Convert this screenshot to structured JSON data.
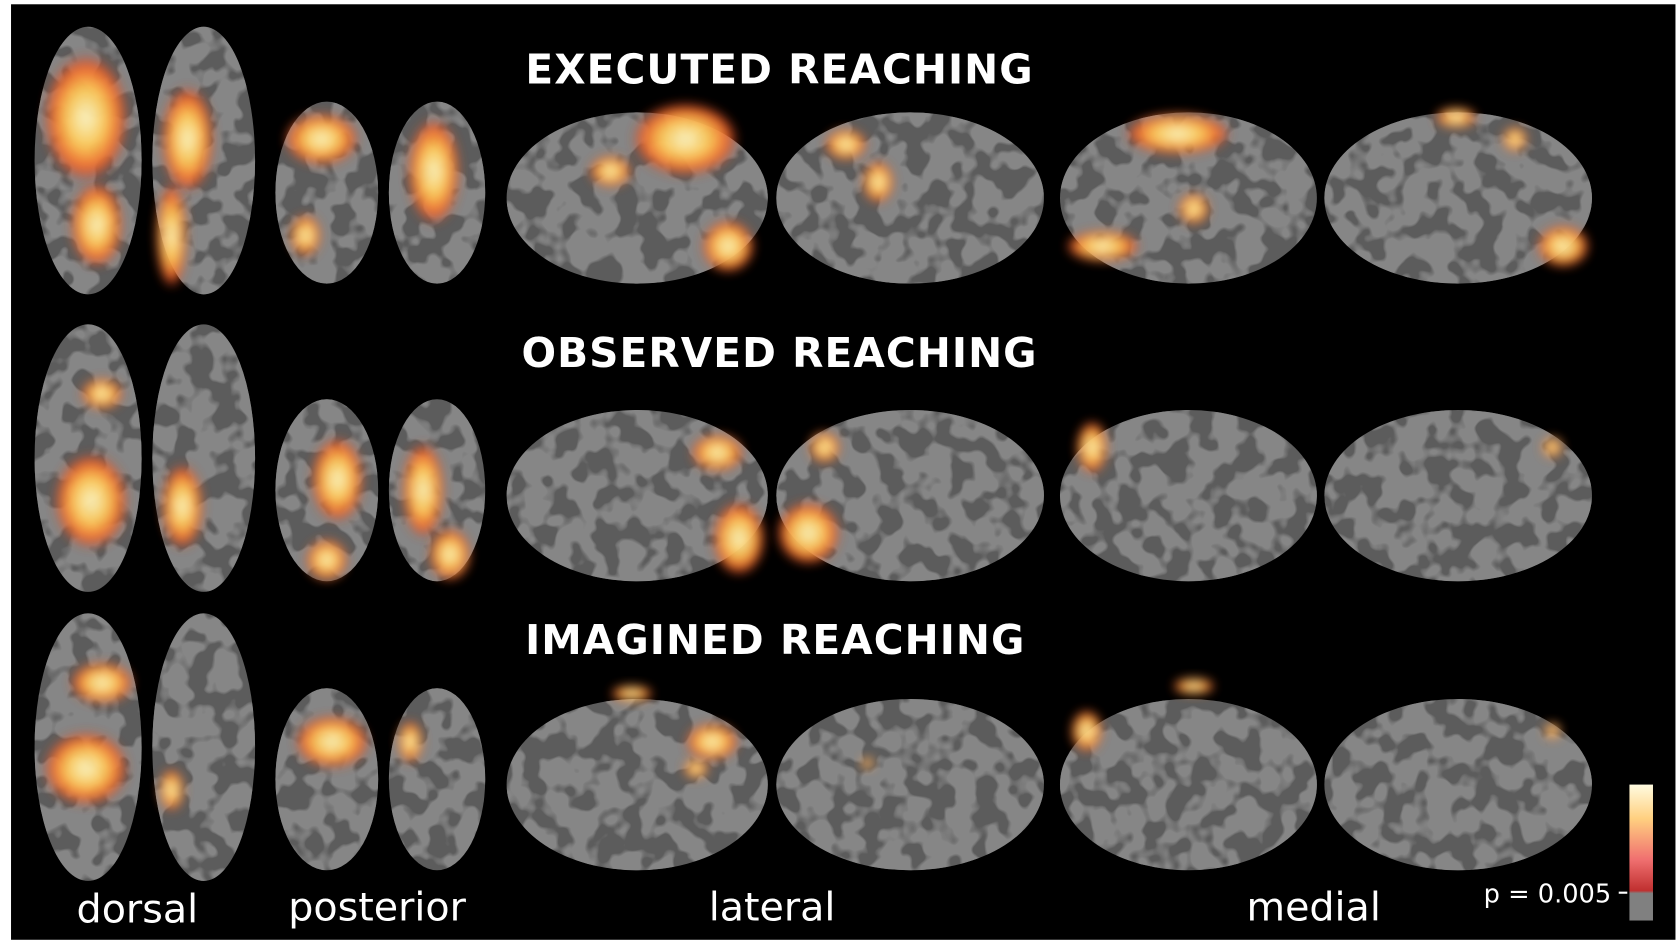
{
  "panels": [
    {
      "title": "EXECUTED REACHING"
    },
    {
      "title": "OBSERVED REACHING"
    },
    {
      "title": "IMAGINED REACHING"
    }
  ],
  "views": [
    "dorsal",
    "posterior",
    "lateral",
    "medial"
  ],
  "colorbar": {
    "label": "p = 0.005"
  }
}
